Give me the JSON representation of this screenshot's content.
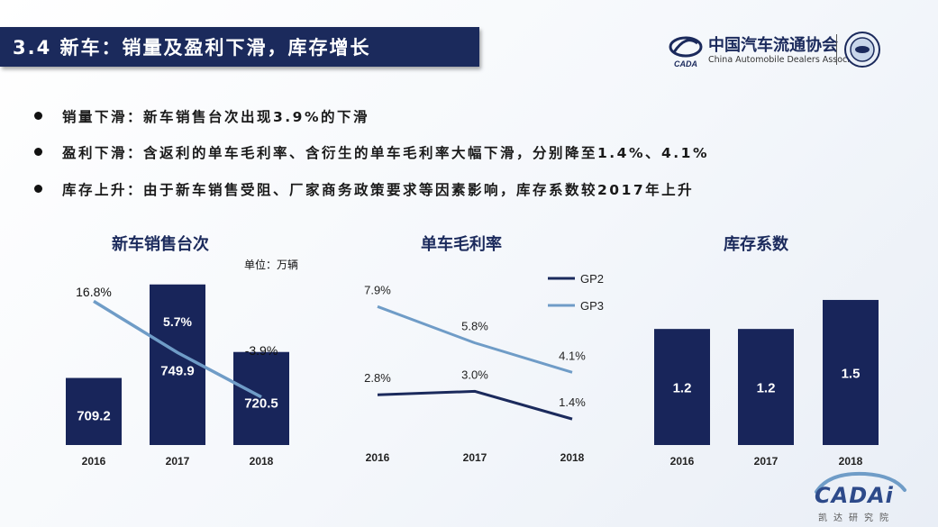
{
  "header": {
    "title": "3.4 新车：销量及盈利下滑，库存增长"
  },
  "logo": {
    "org_cn": "中国汽车流通协会",
    "org_en": "China Automobile Dealers Association",
    "mark_text": "CADA"
  },
  "bullets": [
    "销量下滑：新车销售台次出现3.9%的下滑",
    "盈利下滑：含返利的单车毛利率、含衍生的单车毛利率大幅下滑，分别降至1.4%、4.1%",
    "库存上升：由于新车销售受阻、厂家商务政策要求等因素影响，库存系数较2017年上升"
  ],
  "footer": {
    "brand": "CADAi",
    "brand_cn": "凯达研究院"
  },
  "colors": {
    "navy": "#1b2a5c",
    "bar": "#18255a",
    "light_line": "#6f9cc7",
    "dark_line": "#1b2a5c"
  },
  "chart_data": [
    {
      "type": "bar",
      "title": "新车销售台次",
      "unit": "单位：万辆",
      "categories": [
        "2016",
        "2017",
        "2018"
      ],
      "values": [
        709.2,
        749.9,
        720.5
      ],
      "ylim": [
        680,
        760
      ],
      "secondary": {
        "type": "line",
        "values": [
          16.8,
          5.7,
          -3.9
        ],
        "labels": [
          "16.8%",
          "5.7%",
          "-3.9%"
        ],
        "ylim": [
          -10,
          20
        ]
      }
    },
    {
      "type": "line",
      "title": "单车毛利率",
      "categories": [
        "2016",
        "2017",
        "2018"
      ],
      "ylim": [
        0,
        10
      ],
      "series": [
        {
          "name": "GP2",
          "values": [
            2.8,
            3.0,
            1.4
          ],
          "labels": [
            "2.8%",
            "3.0%",
            "1.4%"
          ]
        },
        {
          "name": "GP3",
          "values": [
            7.9,
            5.8,
            4.1
          ],
          "labels": [
            "7.9%",
            "5.8%",
            "4.1%"
          ]
        }
      ]
    },
    {
      "type": "bar",
      "title": "库存系数",
      "categories": [
        "2016",
        "2017",
        "2018"
      ],
      "values": [
        1.2,
        1.2,
        1.5
      ],
      "labels": [
        "1.2",
        "1.2",
        "1.5"
      ],
      "ylim": [
        0,
        1.9
      ]
    }
  ]
}
